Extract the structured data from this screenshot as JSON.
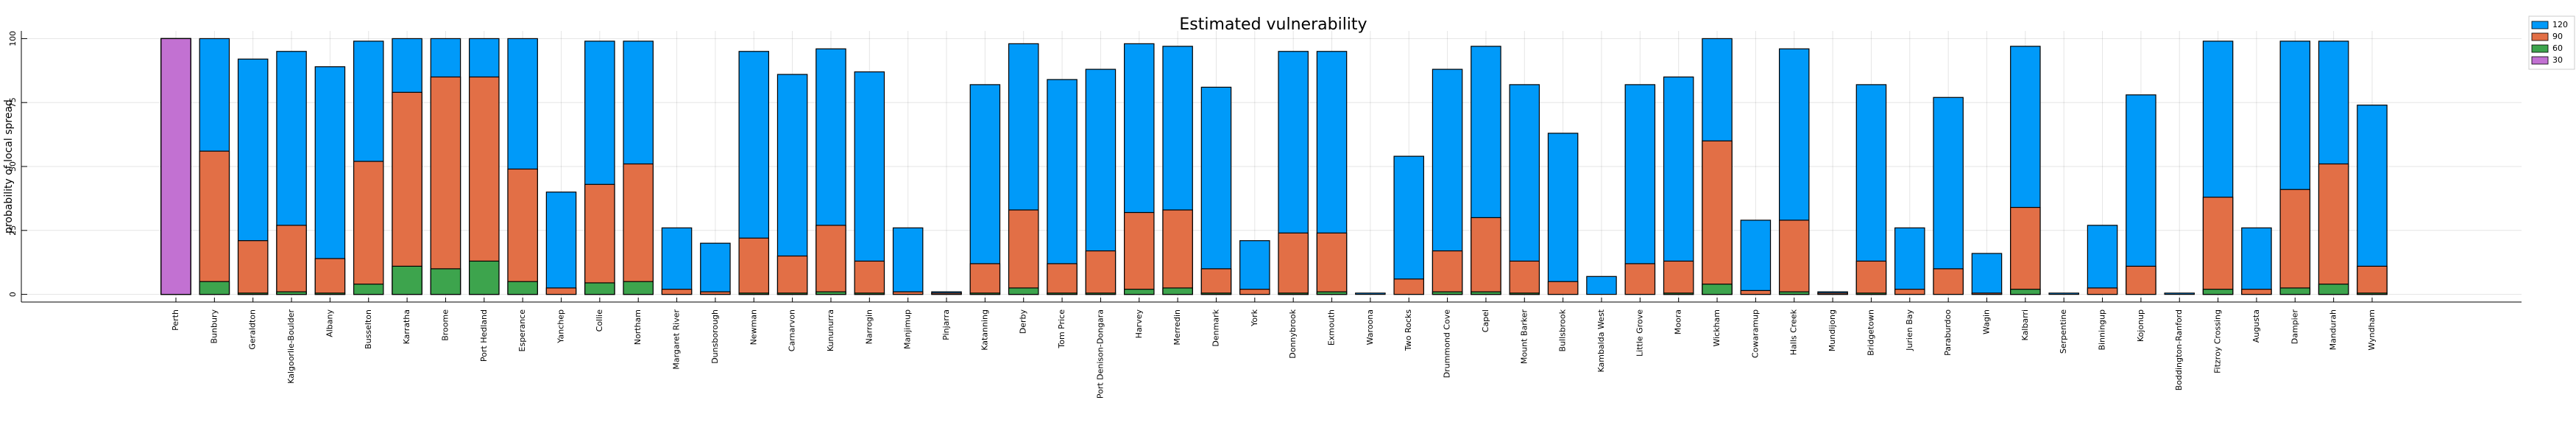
{
  "chart_data": {
    "type": "bar",
    "title": "Estimated vulnerability",
    "ylabel": "probability of local spread",
    "categories": [
      "Perth",
      "Bunbury",
      "Geraldton",
      "Kalgoorlie-Boulder",
      "Albany",
      "Busselton",
      "Karratha",
      "Broome",
      "Port Hedland",
      "Esperance",
      "Yanchep",
      "Collie",
      "Northam",
      "Margaret River",
      "Dunsborough",
      "Newman",
      "Carnarvon",
      "Kununurra",
      "Narrogin",
      "Manjimup",
      "Pinjarra",
      "Katanning",
      "Derby",
      "Tom Price",
      "Port Denison-Dongara",
      "Harvey",
      "Merredin",
      "Denmark",
      "York",
      "Donnybrook",
      "Exmouth",
      "Waroona",
      "Two Rocks",
      "Drummond Cove",
      "Capel",
      "Mount Barker",
      "Bullsbrook",
      "Kambalda West",
      "Little Grove",
      "Moora",
      "Wickham",
      "Cowaramup",
      "Halls Creek",
      "Mundijong",
      "Bridgetown",
      "Jurien Bay",
      "Paraburdoo",
      "Wagin",
      "Kalbarri",
      "Serpentine",
      "Binningup",
      "Kojonup",
      "Boddington-Ranford",
      "Fitzroy Crossing",
      "Augusta",
      "Dampier",
      "Mandurah",
      "Wyndham"
    ],
    "series": [
      {
        "name": "120",
        "color": "#009af9",
        "values": [
          100,
          100,
          92,
          95,
          89,
          99,
          100,
          100,
          100,
          100,
          40,
          99,
          99,
          26,
          20,
          95,
          86,
          96,
          87,
          26,
          1,
          82,
          98,
          84,
          88,
          98,
          97,
          81,
          21,
          95,
          95,
          0.5,
          54,
          88,
          97,
          82,
          63,
          7,
          82,
          85,
          100,
          29,
          96,
          1,
          82,
          26,
          77,
          16,
          97,
          0.5,
          27,
          78,
          0.5,
          99,
          26,
          99,
          99,
          74
        ]
      },
      {
        "name": "90",
        "color": "#e26f46",
        "values": [
          100,
          56,
          21,
          27,
          14,
          52,
          79,
          85,
          85,
          49,
          2.5,
          43,
          51,
          2,
          1,
          22,
          15,
          27,
          13,
          1,
          0.5,
          12,
          33,
          12,
          17,
          32,
          33,
          10,
          2,
          24,
          24,
          0,
          6,
          17,
          30,
          13,
          5,
          0,
          12,
          13,
          60,
          1.5,
          29,
          0.5,
          13,
          2,
          10,
          0.5,
          34,
          0,
          2.5,
          11,
          0,
          38,
          2,
          41,
          51,
          11
        ]
      },
      {
        "name": "60",
        "color": "#3da44d",
        "values": [
          100,
          5,
          0.5,
          1,
          0.5,
          4,
          11,
          10,
          13,
          5,
          0,
          4.5,
          5,
          0,
          0,
          0.5,
          0.5,
          1,
          0.5,
          0,
          0,
          0.5,
          2.5,
          0.5,
          0.5,
          2,
          2.5,
          0.5,
          0,
          0.5,
          1,
          0,
          0,
          1,
          1,
          0.5,
          0,
          0,
          0,
          0.5,
          4,
          0,
          1,
          0,
          0.5,
          0,
          0,
          0,
          2,
          0,
          0,
          0,
          0,
          2,
          0,
          2.5,
          4,
          0.5
        ]
      },
      {
        "name": "30",
        "color": "#c271d2",
        "values": [
          100,
          0,
          0,
          0,
          0,
          0,
          0,
          0,
          0,
          0,
          0,
          0,
          0,
          0,
          0,
          0,
          0,
          0,
          0,
          0,
          0,
          0,
          0,
          0,
          0,
          0,
          0,
          0,
          0,
          0,
          0,
          0,
          0,
          0,
          0,
          0,
          0,
          0,
          0,
          0,
          0,
          0,
          0,
          0,
          0,
          0,
          0,
          0,
          0,
          0,
          0,
          0,
          0,
          0,
          0,
          0,
          0,
          0
        ]
      }
    ],
    "ylim": [
      -3,
      103
    ],
    "yticks": [
      0,
      25,
      50,
      75,
      100
    ],
    "grid": true,
    "legend": "top-right"
  }
}
